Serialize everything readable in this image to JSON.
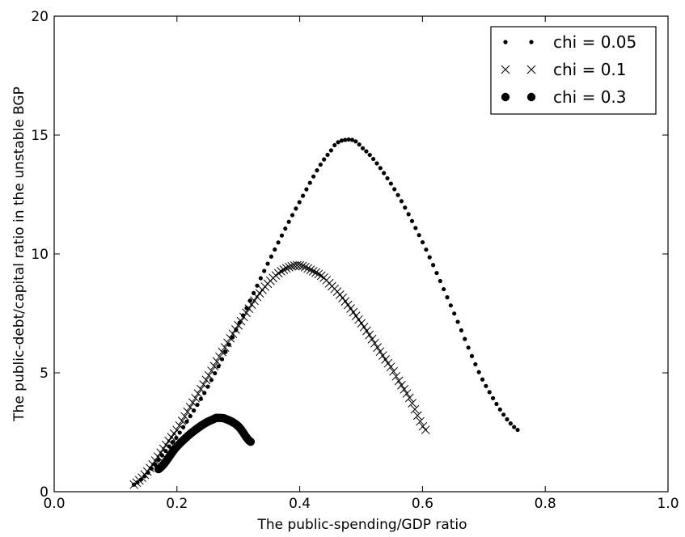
{
  "chart_data": {
    "type": "scatter",
    "title": "",
    "xlabel": "The public-spending/GDP ratio",
    "ylabel": "The public-debt/capital ratio in the unstable BGP",
    "xlim": [
      0.0,
      1.0
    ],
    "ylim": [
      0,
      20
    ],
    "xticks": [
      "0.0",
      "0.2",
      "0.4",
      "0.6",
      "0.8",
      "1.0"
    ],
    "yticks": [
      "0",
      "5",
      "10",
      "15",
      "20"
    ],
    "grid": false,
    "legend_position": "top-right",
    "series": [
      {
        "name": "chi = 0.05",
        "marker": "small-dot",
        "x_start": 0.13,
        "x_end": 0.755,
        "points": [
          [
            0.13,
            0.3
          ],
          [
            0.2,
            2.3
          ],
          [
            0.25,
            4.4
          ],
          [
            0.3,
            7.0
          ],
          [
            0.35,
            9.7
          ],
          [
            0.4,
            12.2
          ],
          [
            0.45,
            14.3
          ],
          [
            0.475,
            14.8
          ],
          [
            0.5,
            14.5
          ],
          [
            0.55,
            12.9
          ],
          [
            0.6,
            10.5
          ],
          [
            0.65,
            7.6
          ],
          [
            0.7,
            4.6
          ],
          [
            0.755,
            2.6
          ]
        ]
      },
      {
        "name": "chi = 0.1",
        "marker": "x",
        "x_start": 0.13,
        "x_end": 0.605,
        "points": [
          [
            0.13,
            0.3
          ],
          [
            0.2,
            2.6
          ],
          [
            0.25,
            4.8
          ],
          [
            0.3,
            7.0
          ],
          [
            0.35,
            8.8
          ],
          [
            0.39,
            9.5
          ],
          [
            0.42,
            9.3
          ],
          [
            0.45,
            8.7
          ],
          [
            0.5,
            7.1
          ],
          [
            0.55,
            5.2
          ],
          [
            0.58,
            3.9
          ],
          [
            0.605,
            2.6
          ]
        ]
      },
      {
        "name": "chi = 0.3",
        "marker": "large-dot",
        "x_start": 0.17,
        "x_end": 0.32,
        "points": [
          [
            0.17,
            0.95
          ],
          [
            0.2,
            1.9
          ],
          [
            0.23,
            2.6
          ],
          [
            0.26,
            3.05
          ],
          [
            0.27,
            3.1
          ],
          [
            0.28,
            3.05
          ],
          [
            0.3,
            2.75
          ],
          [
            0.32,
            2.1
          ]
        ]
      }
    ]
  }
}
